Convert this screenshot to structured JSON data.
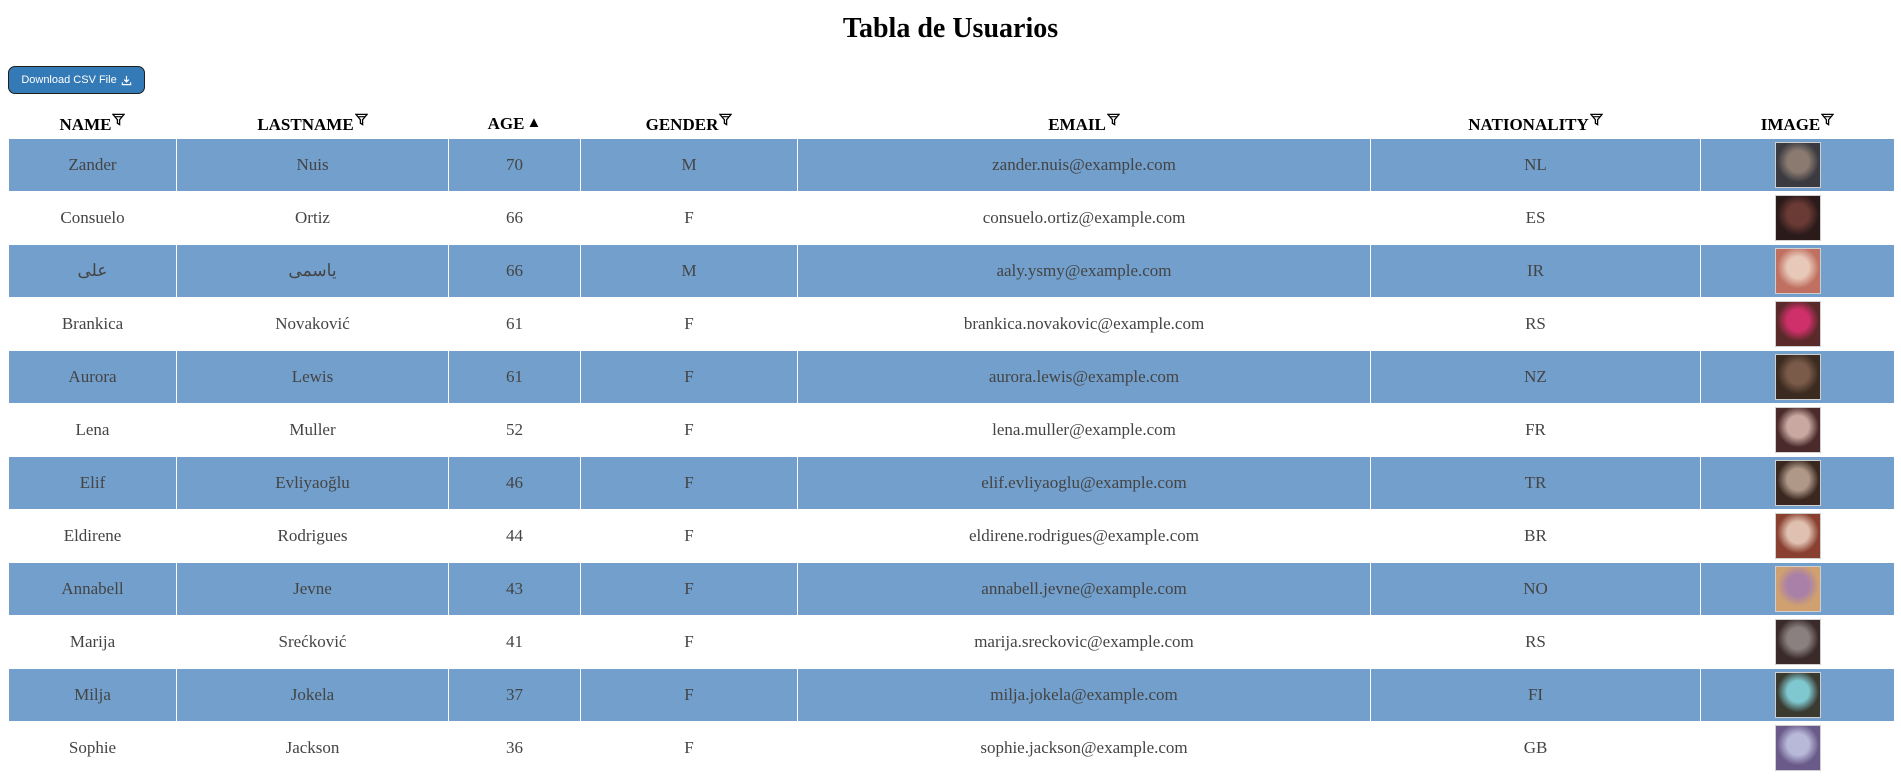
{
  "page": {
    "title": "Tabla de Usuarios",
    "download_button": {
      "label": "Download CSV File",
      "icon": "download-icon"
    }
  },
  "table": {
    "columns": [
      {
        "key": "name",
        "label": "NAME",
        "indicator": "filter-icon"
      },
      {
        "key": "lastname",
        "label": "LASTNAME",
        "indicator": "filter-icon"
      },
      {
        "key": "age",
        "label": "AGE",
        "indicator": "▲"
      },
      {
        "key": "gender",
        "label": "GENDER",
        "indicator": "filter-icon"
      },
      {
        "key": "email",
        "label": "EMAIL",
        "indicator": "filter-icon"
      },
      {
        "key": "nationality",
        "label": "NATIONALITY",
        "indicator": "filter-icon"
      },
      {
        "key": "image",
        "label": "IMAGE",
        "indicator": "filter-icon"
      }
    ],
    "stripe_color": "#729fcb",
    "rows": [
      {
        "name": "Zander",
        "lastname": "Nuis",
        "age": "70",
        "gender": "M",
        "email": "zander.nuis@example.com",
        "nationality": "NL",
        "image": {
          "alt": "avatar",
          "colors": [
            "#8a7a70",
            "#3a3a40"
          ]
        }
      },
      {
        "name": "Consuelo",
        "lastname": "Ortiz",
        "age": "66",
        "gender": "F",
        "email": "consuelo.ortiz@example.com",
        "nationality": "ES",
        "image": {
          "alt": "avatar",
          "colors": [
            "#6a3a34",
            "#2a1a1a"
          ]
        }
      },
      {
        "name": "علی",
        "lastname": "یاسمی",
        "age": "66",
        "gender": "M",
        "email": "aaly.ysmy@example.com",
        "nationality": "IR",
        "image": {
          "alt": "avatar",
          "colors": [
            "#e8c8b8",
            "#c07060"
          ]
        }
      },
      {
        "name": "Brankica",
        "lastname": "Novaković",
        "age": "61",
        "gender": "F",
        "email": "brankica.novakovic@example.com",
        "nationality": "RS",
        "image": {
          "alt": "avatar",
          "colors": [
            "#d0306a",
            "#5a2a2a"
          ]
        }
      },
      {
        "name": "Aurora",
        "lastname": "Lewis",
        "age": "61",
        "gender": "F",
        "email": "aurora.lewis@example.com",
        "nationality": "NZ",
        "image": {
          "alt": "avatar",
          "colors": [
            "#7a5a48",
            "#3a2a20"
          ]
        }
      },
      {
        "name": "Lena",
        "lastname": "Muller",
        "age": "52",
        "gender": "F",
        "email": "lena.muller@example.com",
        "nationality": "FR",
        "image": {
          "alt": "avatar",
          "colors": [
            "#c8a8a0",
            "#4a2a2a"
          ]
        }
      },
      {
        "name": "Elif",
        "lastname": "Evliyaoğlu",
        "age": "46",
        "gender": "F",
        "email": "elif.evliyaoglu@example.com",
        "nationality": "TR",
        "image": {
          "alt": "avatar",
          "colors": [
            "#b09888",
            "#3a2820"
          ]
        }
      },
      {
        "name": "Eldirene",
        "lastname": "Rodrigues",
        "age": "44",
        "gender": "F",
        "email": "eldirene.rodrigues@example.com",
        "nationality": "BR",
        "image": {
          "alt": "avatar",
          "colors": [
            "#e0c0b0",
            "#8a4030"
          ]
        }
      },
      {
        "name": "Annabell",
        "lastname": "Jevne",
        "age": "43",
        "gender": "F",
        "email": "annabell.jevne@example.com",
        "nationality": "NO",
        "image": {
          "alt": "avatar",
          "colors": [
            "#a880a8",
            "#d0a070"
          ]
        }
      },
      {
        "name": "Marija",
        "lastname": "Srećković",
        "age": "41",
        "gender": "F",
        "email": "marija.sreckovic@example.com",
        "nationality": "RS",
        "image": {
          "alt": "avatar",
          "colors": [
            "#8a8080",
            "#3a2a2a"
          ]
        }
      },
      {
        "name": "Milja",
        "lastname": "Jokela",
        "age": "37",
        "gender": "F",
        "email": "milja.jokela@example.com",
        "nationality": "FI",
        "image": {
          "alt": "avatar",
          "colors": [
            "#80c8d0",
            "#3a3a30"
          ]
        }
      },
      {
        "name": "Sophie",
        "lastname": "Jackson",
        "age": "36",
        "gender": "F",
        "email": "sophie.jackson@example.com",
        "nationality": "GB",
        "image": {
          "alt": "avatar",
          "colors": [
            "#b8b8d8",
            "#6a5a8a"
          ]
        }
      }
    ]
  }
}
